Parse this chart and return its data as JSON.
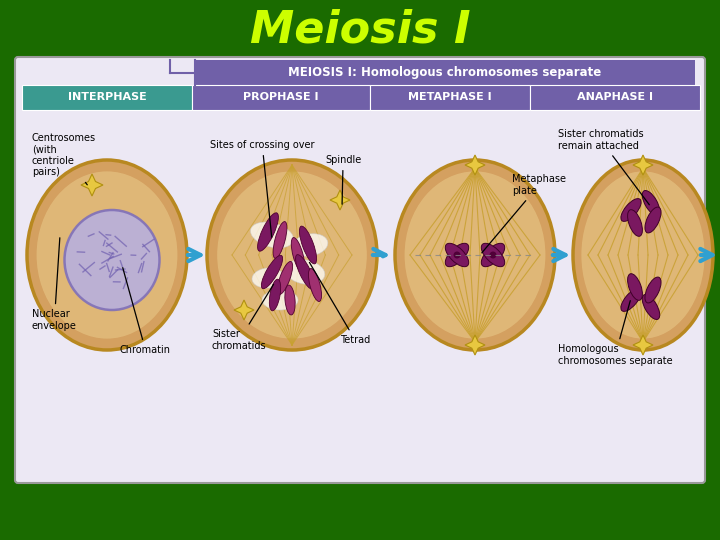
{
  "background_color": "#1a6b00",
  "title": "Meiosis I",
  "title_color": "#ccff00",
  "title_fontsize": 32,
  "panel_bg": "#e8e4f0",
  "panel_border": "#aaaaaa",
  "meiosis_bar_color": "#7060a8",
  "meiosis_bar_text": "MEIOSIS I: Homologous chromosomes separate",
  "phase_labels": [
    "INTERPHASE",
    "PROPHASE I",
    "METAPHASE I",
    "ANAPHASE I"
  ],
  "phase_colors": [
    "#3a9a90",
    "#7060a8",
    "#7060a8",
    "#7060a8"
  ],
  "cell_outer": "#d4a060",
  "cell_border": "#b88820",
  "cell_inner_light": "#e8c888",
  "nucleus_fill": "#b8b0e0",
  "nucleus_border": "#8878c0",
  "chrom_dark": "#7a1860",
  "chrom_mid": "#a03070",
  "chrom_light": "#cc60a0",
  "arrow_color": "#30a0d0",
  "spindle_color": "#c8a030",
  "centriole_color": "#e8c840",
  "ann_fontsize": 7.0
}
